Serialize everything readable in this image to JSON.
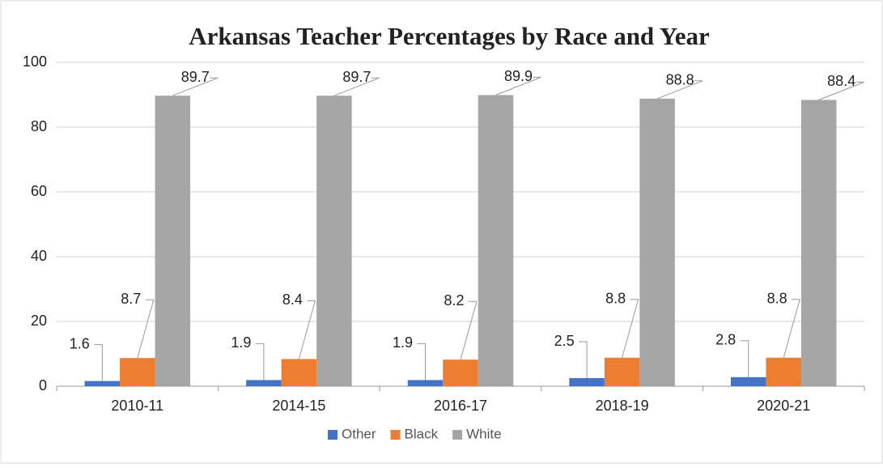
{
  "chart_data": {
    "type": "bar",
    "title": "Arkansas Teacher Percentages by Race and Year",
    "categories": [
      "2010-11",
      "2014-15",
      "2016-17",
      "2018-19",
      "2020-21"
    ],
    "series": [
      {
        "name": "Other",
        "color": "#4472c4",
        "values": [
          1.6,
          1.9,
          1.9,
          2.5,
          2.8
        ]
      },
      {
        "name": "Black",
        "color": "#ed7d31",
        "values": [
          8.7,
          8.4,
          8.2,
          8.8,
          8.8
        ]
      },
      {
        "name": "White",
        "color": "#a5a5a5",
        "values": [
          89.7,
          89.7,
          89.9,
          88.8,
          88.4
        ]
      }
    ],
    "ylim": [
      0,
      100
    ],
    "yticks": [
      0,
      20,
      40,
      60,
      80,
      100
    ],
    "grid": true,
    "legend": "bottom"
  }
}
